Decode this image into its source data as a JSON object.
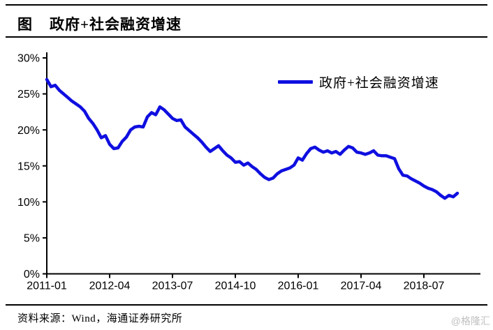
{
  "header": {
    "figure_label": "图",
    "title": "政府+社会融资增速"
  },
  "legend": {
    "label": "政府+社会融资增速"
  },
  "footer": {
    "source": "资料来源：Wind，海通证券研究所",
    "watermark": "@格隆汇"
  },
  "colors": {
    "line": "#0f0fe0",
    "axis": "#000000",
    "tick_text": "#000000",
    "watermark": "#c0c0c0"
  },
  "chart_data": {
    "type": "line",
    "title": "政府+社会融资增速",
    "xlabel": "",
    "ylabel": "",
    "ylim": [
      0,
      30
    ],
    "grid": false,
    "legend_position": "upper-center",
    "y_tick_labels": [
      "0%",
      "5%",
      "10%",
      "15%",
      "20%",
      "25%",
      "30%"
    ],
    "x_tick_labels": [
      "2011-01",
      "2012-04",
      "2013-07",
      "2014-10",
      "2016-01",
      "2017-04",
      "2018-07"
    ],
    "x_tick_interval_months": 15,
    "x": [
      "2011-01",
      "2011-02",
      "2011-03",
      "2011-04",
      "2011-05",
      "2011-06",
      "2011-07",
      "2011-08",
      "2011-09",
      "2011-10",
      "2011-11",
      "2011-12",
      "2012-01",
      "2012-02",
      "2012-03",
      "2012-04",
      "2012-05",
      "2012-06",
      "2012-07",
      "2012-08",
      "2012-09",
      "2012-10",
      "2012-11",
      "2012-12",
      "2013-01",
      "2013-02",
      "2013-03",
      "2013-04",
      "2013-05",
      "2013-06",
      "2013-07",
      "2013-08",
      "2013-09",
      "2013-10",
      "2013-11",
      "2013-12",
      "2014-01",
      "2014-02",
      "2014-03",
      "2014-04",
      "2014-05",
      "2014-06",
      "2014-07",
      "2014-08",
      "2014-09",
      "2014-10",
      "2014-11",
      "2014-12",
      "2015-01",
      "2015-02",
      "2015-03",
      "2015-04",
      "2015-05",
      "2015-06",
      "2015-07",
      "2015-08",
      "2015-09",
      "2015-10",
      "2015-11",
      "2015-12",
      "2016-01",
      "2016-02",
      "2016-03",
      "2016-04",
      "2016-05",
      "2016-06",
      "2016-07",
      "2016-08",
      "2016-09",
      "2016-10",
      "2016-11",
      "2016-12",
      "2017-01",
      "2017-02",
      "2017-03",
      "2017-04",
      "2017-05",
      "2017-06",
      "2017-07",
      "2017-08",
      "2017-09",
      "2017-10",
      "2017-11",
      "2017-12",
      "2018-01",
      "2018-02",
      "2018-03",
      "2018-04",
      "2018-05",
      "2018-06",
      "2018-07",
      "2018-08",
      "2018-09",
      "2018-10",
      "2018-11",
      "2018-12",
      "2019-01",
      "2019-02",
      "2019-03"
    ],
    "series": [
      {
        "name": "政府+社会融资增速",
        "unit": "%",
        "values": [
          27.0,
          26.0,
          26.2,
          25.5,
          25.0,
          24.5,
          24.0,
          23.6,
          23.2,
          22.6,
          21.6,
          20.9,
          20.0,
          18.9,
          19.2,
          18.0,
          17.4,
          17.5,
          18.4,
          19.0,
          20.0,
          20.4,
          20.5,
          20.4,
          21.8,
          22.4,
          22.1,
          23.2,
          22.8,
          22.2,
          21.6,
          21.3,
          21.4,
          20.4,
          19.9,
          19.4,
          18.9,
          18.3,
          17.6,
          17.0,
          17.4,
          17.8,
          17.1,
          16.5,
          16.1,
          15.5,
          15.6,
          15.1,
          15.4,
          14.9,
          14.5,
          13.9,
          13.4,
          13.1,
          13.3,
          13.9,
          14.3,
          14.5,
          14.7,
          15.1,
          16.1,
          15.8,
          16.7,
          17.4,
          17.6,
          17.2,
          16.9,
          17.1,
          16.8,
          17.0,
          16.6,
          17.2,
          17.7,
          17.5,
          16.9,
          16.8,
          16.6,
          16.8,
          17.1,
          16.5,
          16.4,
          16.4,
          16.2,
          16.0,
          14.6,
          13.7,
          13.6,
          13.2,
          12.9,
          12.6,
          12.2,
          11.9,
          11.7,
          11.4,
          10.9,
          10.5,
          10.9,
          10.7,
          11.2
        ]
      }
    ]
  }
}
